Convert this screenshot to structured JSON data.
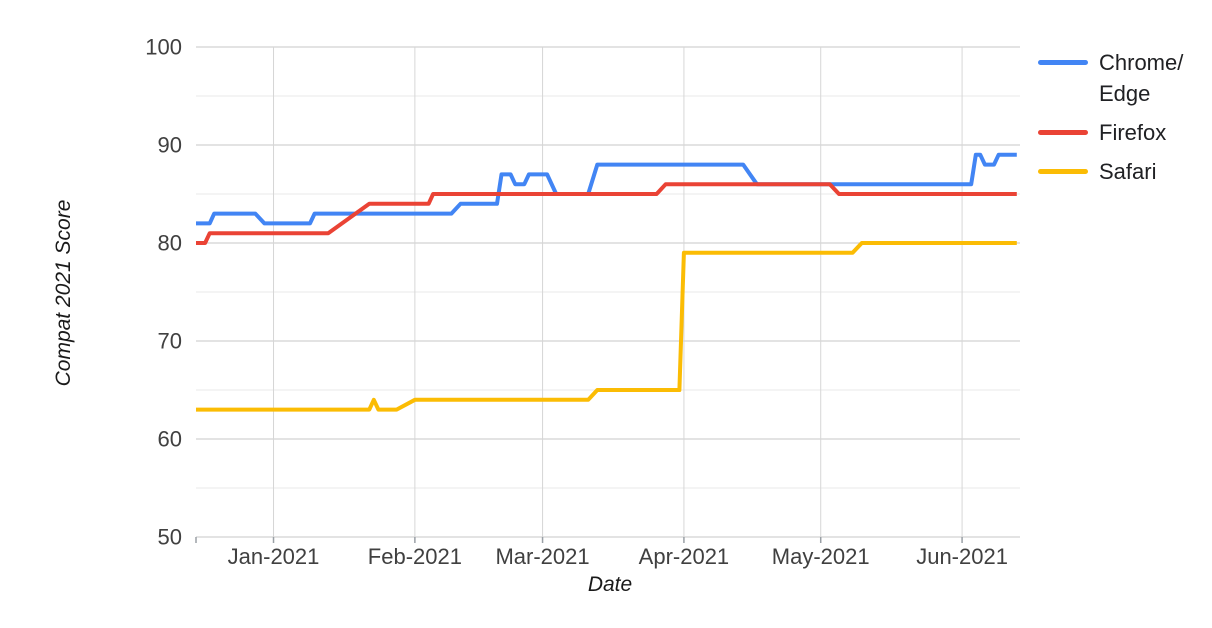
{
  "chart_data": {
    "type": "line",
    "title": "",
    "xlabel": "Date",
    "ylabel": "Compat 2021 Score",
    "x_unit": "days since 2020-12-15",
    "x_range": [
      0,
      180
    ],
    "ylim": [
      50,
      100
    ],
    "y_major_ticks": [
      50,
      60,
      70,
      80,
      90,
      100
    ],
    "y_minor_gridlines": [
      55,
      65,
      75,
      85,
      95
    ],
    "x_ticks": [
      {
        "label": "Jan-2021",
        "day": 17
      },
      {
        "label": "Feb-2021",
        "day": 48
      },
      {
        "label": "Mar-2021",
        "day": 76
      },
      {
        "label": "Apr-2021",
        "day": 107
      },
      {
        "label": "May-2021",
        "day": 137
      },
      {
        "label": "Jun-2021",
        "day": 168
      }
    ],
    "grid": true,
    "legend_position": "right",
    "series": [
      {
        "name": "Chrome/Edge",
        "label_lines": [
          "Chrome/",
          "Edge"
        ],
        "color": "#4285F4",
        "points": [
          [
            0,
            82
          ],
          [
            3,
            82
          ],
          [
            4,
            83
          ],
          [
            13,
            83
          ],
          [
            15,
            82
          ],
          [
            25,
            82
          ],
          [
            26,
            83
          ],
          [
            56,
            83
          ],
          [
            58,
            84
          ],
          [
            66,
            84
          ],
          [
            67,
            87
          ],
          [
            69,
            87
          ],
          [
            70,
            86
          ],
          [
            72,
            86
          ],
          [
            73,
            87
          ],
          [
            77,
            87
          ],
          [
            79,
            85
          ],
          [
            86,
            85
          ],
          [
            88,
            88
          ],
          [
            120,
            88
          ],
          [
            123,
            86
          ],
          [
            170,
            86
          ],
          [
            171,
            89
          ],
          [
            172,
            89
          ],
          [
            173,
            88
          ],
          [
            175,
            88
          ],
          [
            176,
            89
          ],
          [
            180,
            89
          ]
        ]
      },
      {
        "name": "Firefox",
        "label_lines": [
          "Firefox"
        ],
        "color": "#EA4335",
        "points": [
          [
            0,
            80
          ],
          [
            2,
            80
          ],
          [
            3,
            81
          ],
          [
            29,
            81
          ],
          [
            38,
            84
          ],
          [
            51,
            84
          ],
          [
            52,
            85
          ],
          [
            101,
            85
          ],
          [
            103,
            86
          ],
          [
            139,
            86
          ],
          [
            141,
            85
          ],
          [
            180,
            85
          ]
        ]
      },
      {
        "name": "Safari",
        "label_lines": [
          "Safari"
        ],
        "color": "#FBBC04",
        "points": [
          [
            0,
            63
          ],
          [
            38,
            63
          ],
          [
            39,
            64
          ],
          [
            40,
            63
          ],
          [
            44,
            63
          ],
          [
            48,
            64
          ],
          [
            86,
            64
          ],
          [
            88,
            65
          ],
          [
            106,
            65
          ],
          [
            107,
            79
          ],
          [
            144,
            79
          ],
          [
            146,
            80
          ],
          [
            180,
            80
          ]
        ]
      }
    ]
  },
  "style_colors": {
    "background": "#ffffff",
    "gridline_major": "#c7c7c7",
    "gridline_minor": "#eaeaea",
    "gridline_vertical": "#d6d6d6",
    "tick_mark": "#9aa0a6",
    "tick_label": "#404040",
    "legend_text": "#202124"
  }
}
